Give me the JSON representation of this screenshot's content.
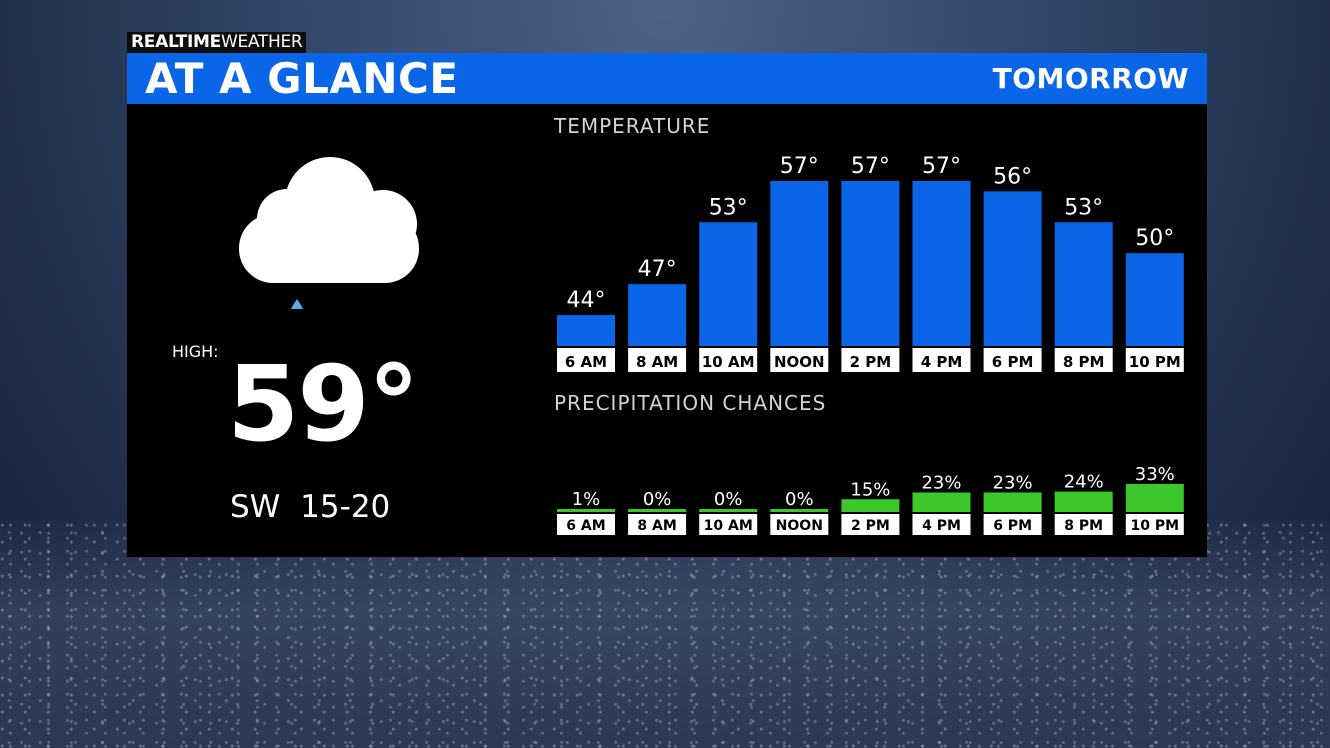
{
  "brand": {
    "bold": "REALTIME",
    "light": "WEATHER"
  },
  "header": {
    "title": "AT A GLANCE",
    "period": "TOMORROW"
  },
  "summary": {
    "icon": "cloud-rain-icon",
    "high_label": "HIGH:",
    "high_value": "59°",
    "wind": "SW 15-20"
  },
  "colors": {
    "header": "#0a66e6",
    "temp_bar": "#0a66e6",
    "precip_bar": "#3cc82a",
    "panel": "#000000"
  },
  "chart_data": [
    {
      "type": "bar",
      "title": "TEMPERATURE",
      "categories": [
        "6 AM",
        "8 AM",
        "10 AM",
        "NOON",
        "2 PM",
        "4 PM",
        "6 PM",
        "8 PM",
        "10 PM"
      ],
      "values": [
        44,
        47,
        53,
        57,
        57,
        57,
        56,
        53,
        50
      ],
      "value_labels": [
        "44°",
        "47°",
        "53°",
        "57°",
        "57°",
        "57°",
        "56°",
        "53°",
        "50°"
      ],
      "ylim": [
        41,
        57
      ],
      "grid": false
    },
    {
      "type": "bar",
      "title": "PRECIPITATION CHANCES",
      "categories": [
        "6 AM",
        "8 AM",
        "10 AM",
        "NOON",
        "2 PM",
        "4 PM",
        "6 PM",
        "8 PM",
        "10 PM"
      ],
      "values": [
        1,
        0,
        0,
        0,
        15,
        23,
        23,
        24,
        33
      ],
      "value_labels": [
        "1%",
        "0%",
        "0%",
        "0%",
        "15%",
        "23%",
        "23%",
        "24%",
        "33%"
      ],
      "ylim": [
        0,
        100
      ],
      "grid": false
    }
  ]
}
